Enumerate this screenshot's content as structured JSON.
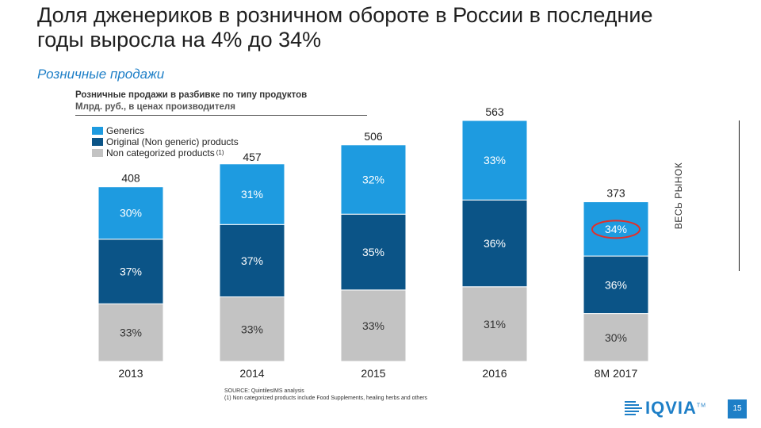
{
  "title": "Доля дженериков в розничном обороте в России в последние годы выросла на 4% до 34%",
  "subtitle": "Розничные продажи",
  "side_label": "ВЕСЬ РЫНОК",
  "source_lines": [
    "SOURCE: QuintilesIMS analysis",
    "(1)   Non categorized products include Food Supplements, healing herbs and others"
  ],
  "logo": {
    "text": "IQVIA",
    "mark": "TM"
  },
  "page_number": "15",
  "colors": {
    "generics": "#1e9be0",
    "original": "#0b5487",
    "non_categorized": "#c3c3c3",
    "highlight": "#e0302b"
  },
  "chart_data": {
    "type": "bar",
    "stacked": true,
    "title": "Розничные продажи в разбивке по типу продуктов",
    "ylabel": "Млрд. руб., в ценах производителя",
    "categories": [
      "2013",
      "2014",
      "2015",
      "2016",
      "8M 2017"
    ],
    "totals": [
      408,
      457,
      506,
      563,
      373
    ],
    "total_labels": [
      "408",
      "457",
      "506",
      "563",
      "373"
    ],
    "ylim": [
      0,
      563
    ],
    "legend": {
      "position": "top-left"
    },
    "series": [
      {
        "name": "Non categorized products",
        "footnote": "(1)",
        "key": "non_categorized",
        "shares": [
          33,
          33,
          33,
          31,
          30
        ],
        "labels": [
          "33%",
          "33%",
          "33%",
          "31%",
          "30%"
        ]
      },
      {
        "name": "Original (Non generic) products",
        "key": "original",
        "shares": [
          37,
          37,
          35,
          36,
          36
        ],
        "labels": [
          "37%",
          "37%",
          "35%",
          "36%",
          "36%"
        ]
      },
      {
        "name": "Generics",
        "key": "generics",
        "shares": [
          30,
          31,
          32,
          33,
          34
        ],
        "labels": [
          "30%",
          "31%",
          "32%",
          "33%",
          "34%"
        ]
      }
    ],
    "legend_order": [
      "Generics",
      "Original (Non generic) products",
      "Non categorized products"
    ],
    "highlight": {
      "category": "8M 2017",
      "series": "Generics"
    }
  }
}
